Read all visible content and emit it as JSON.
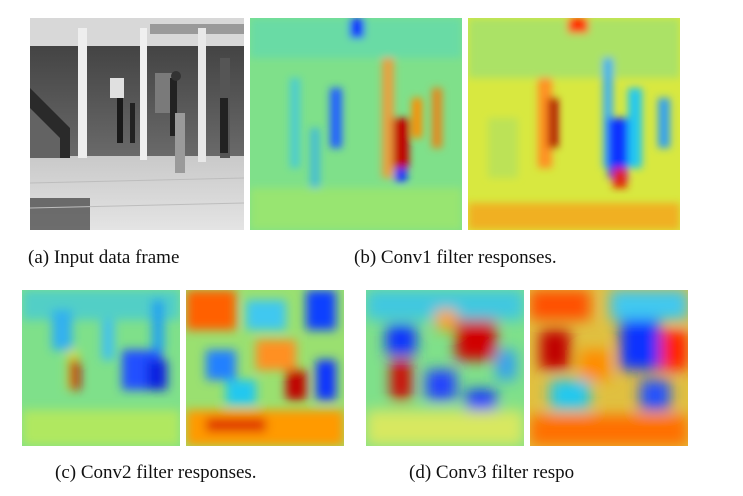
{
  "figure": {
    "captions": {
      "a": "(a) Input data frame",
      "b": "(b) Conv1 filter responses.",
      "c": "(c) Conv2 filter responses.",
      "d": "(d) Conv3 filter respo"
    }
  },
  "colors": {
    "jet_background": "#7fe08a",
    "jet_blue": "#1030ff",
    "jet_red": "#c00000",
    "jet_orange": "#ff8c00",
    "jet_yellow": "#f0e020",
    "jet_cyan": "#20c8f0"
  }
}
